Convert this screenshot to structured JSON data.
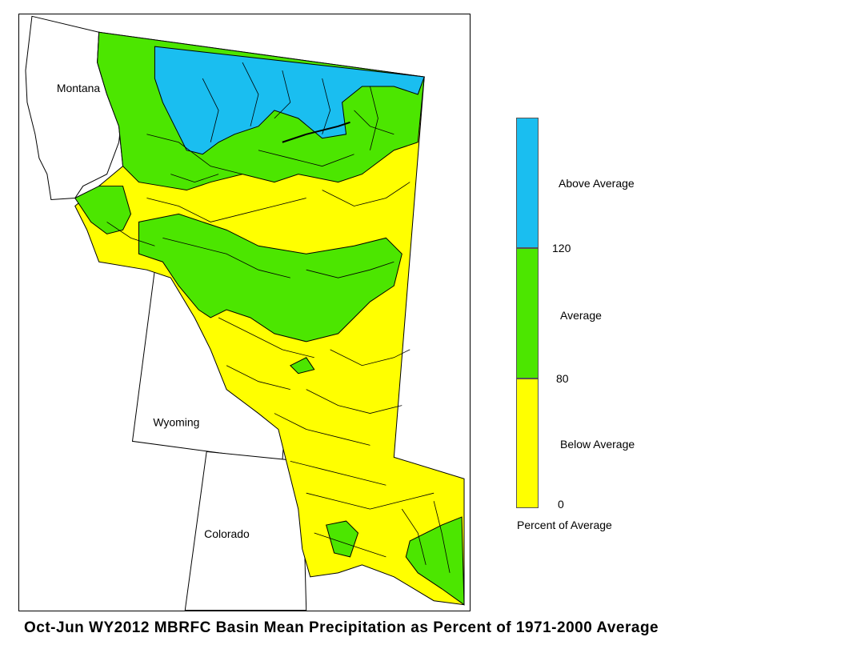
{
  "map": {
    "state_labels": {
      "montana": "Montana",
      "wyoming": "Wyoming",
      "colorado": "Colorado"
    }
  },
  "legend": {
    "classes": [
      {
        "label": "Above Average",
        "range": [
          120,
          null
        ],
        "color": "#1ABEF0"
      },
      {
        "label": "Average",
        "range": [
          80,
          120
        ],
        "color": "#4CE600"
      },
      {
        "label": "Below Average",
        "range": [
          0,
          80
        ],
        "color": "#FFFF00"
      }
    ],
    "ticks": {
      "t120": "120",
      "t80": "80",
      "t0": "0"
    },
    "caption": "Percent of Average"
  },
  "title": "Oct-Jun WY2012 MBRFC Basin Mean Precipitation as Percent of 1971-2000 Average"
}
